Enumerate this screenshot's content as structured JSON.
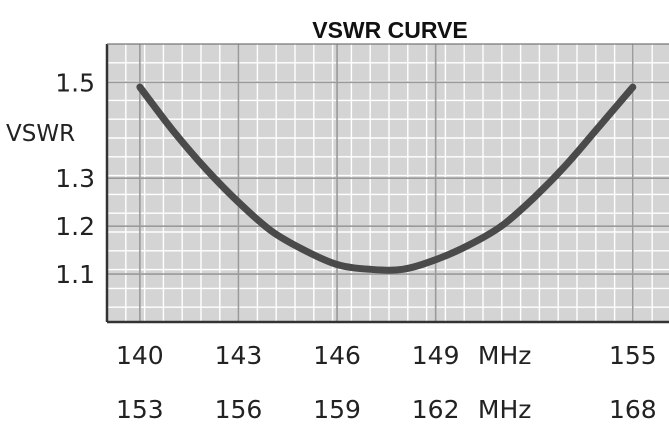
{
  "chart_data": {
    "type": "line",
    "title": "VSWR CURVE",
    "ylabel": "VSWR",
    "xlabel": "",
    "x_unit": "MHz",
    "x": [
      140,
      141,
      142,
      143,
      144,
      145,
      146,
      147,
      148,
      149,
      150,
      151,
      152,
      153,
      154,
      155
    ],
    "series": [
      {
        "values": [
          1.49,
          1.4,
          1.32,
          1.25,
          1.19,
          1.15,
          1.12,
          1.11,
          1.11,
          1.13,
          1.16,
          1.2,
          1.26,
          1.33,
          1.41,
          1.49
        ]
      }
    ],
    "xlim": [
      139,
      156.1
    ],
    "ylim": [
      1.0,
      1.58
    ],
    "x_ticks": [
      140,
      143,
      146,
      149,
      155
    ],
    "x_tick_labels_row1": [
      "140",
      "143",
      "146",
      "149",
      "155"
    ],
    "x_ticks_row2": [
      140,
      143,
      146,
      149,
      155
    ],
    "x_tick_labels_row2": [
      "153",
      "156",
      "159",
      "162",
      "168"
    ],
    "y_ticks": [
      1.1,
      1.2,
      1.3,
      1.5
    ],
    "y_tick_labels": [
      "1.1",
      "1.2",
      "1.3",
      "1.5"
    ],
    "grid": true,
    "colors": {
      "plot_bg": "#d4d4d4",
      "grid_line": "#ffffff",
      "curve": "#4a4a4a",
      "frame": "#333333"
    }
  }
}
